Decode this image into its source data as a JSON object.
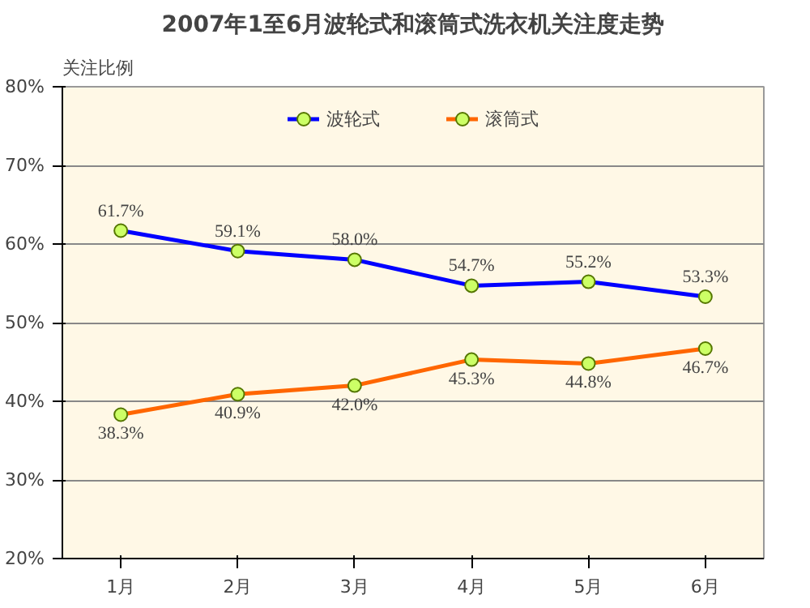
{
  "chart_data": {
    "type": "line",
    "title": "2007年1至6月波轮式和滚筒式洗衣机关注度走势",
    "ylabel": "关注比例",
    "categories": [
      "1月",
      "2月",
      "3月",
      "4月",
      "5月",
      "6月"
    ],
    "series": [
      {
        "name": "波轮式",
        "color": "#0000ff",
        "values": [
          61.7,
          59.1,
          58.0,
          54.7,
          55.2,
          53.3
        ],
        "value_labels": [
          "61.7%",
          "59.1%",
          "58.0%",
          "54.7%",
          "55.2%",
          "53.3%"
        ]
      },
      {
        "name": "滚筒式",
        "color": "#ff6600",
        "values": [
          38.3,
          40.9,
          42.0,
          45.3,
          44.8,
          46.7
        ],
        "value_labels": [
          "38.3%",
          "40.9%",
          "42.0%",
          "45.3%",
          "44.8%",
          "46.7%"
        ]
      }
    ],
    "ylim": [
      20,
      80
    ],
    "yticks": [
      {
        "value": 20,
        "label": "20%"
      },
      {
        "value": 30,
        "label": "30%"
      },
      {
        "value": 40,
        "label": "40%"
      },
      {
        "value": 50,
        "label": "50%"
      },
      {
        "value": 60,
        "label": "60%"
      },
      {
        "value": 70,
        "label": "70%"
      },
      {
        "value": 80,
        "label": "80%"
      }
    ],
    "grid": "y",
    "legend": "top",
    "marker": "circle",
    "line_style": "solid"
  }
}
